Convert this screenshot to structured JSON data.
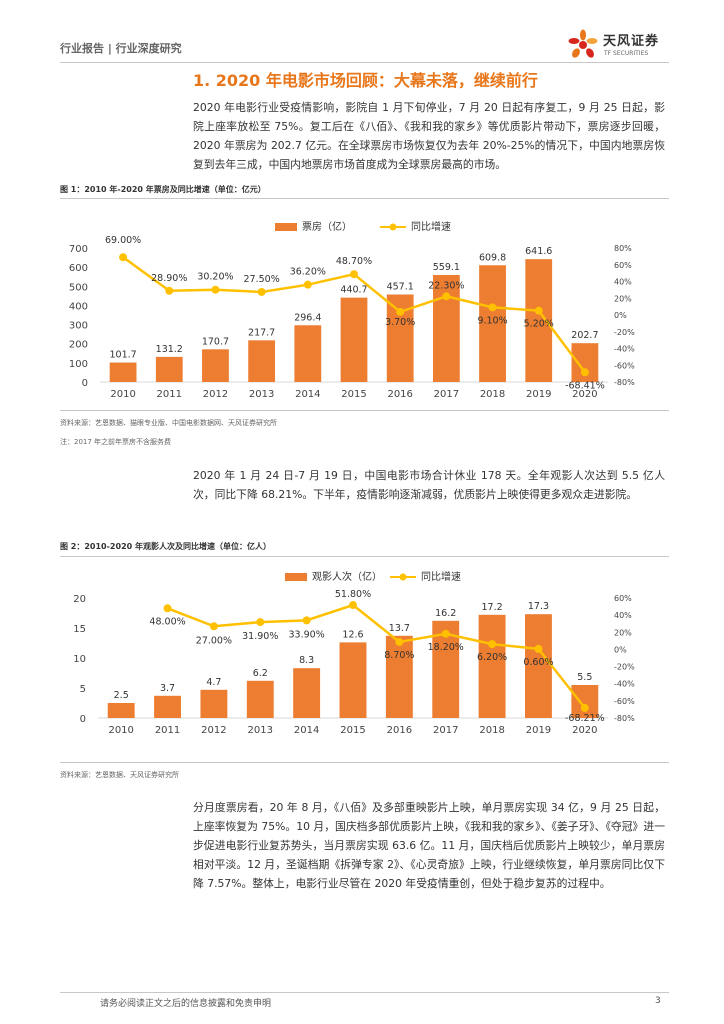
{
  "header": {
    "text": "行业报告 | 行业深度研究"
  },
  "logo": {
    "name_cn": "天风证券",
    "name_en": "TF SECURITIES"
  },
  "section_title": "1. 2020 年电影市场回顾：大幕未落，继续前行",
  "paragraphs": {
    "p1": "2020 年电影行业受疫情影响，影院自 1 月下旬停业，7 月 20 日起有序复工，9 月 25 日起，影院上座率放松至 75%。复工后在《八佰》、《我和我的家乡》等优质影片带动下，票房逐步回暖，2020 年票房为 202.7 亿元。在全球票房市场恢复仅为去年 20%-25%的情况下，中国内地票房恢复到去年三成，中国内地票房市场首度成为全球票房最高的市场。",
    "p2": "2020 年 1 月 24 日-7 月 19 日，中国电影市场合计休业 178 天。全年观影人次达到 5.5 亿人次，同比下降 68.21%。下半年，疫情影响逐渐减弱，优质影片上映使得更多观众走进影院。",
    "p3": "分月度票房看，20 年 8 月，《八佰》及多部重映影片上映，单月票房实现 34 亿，9 月 25 日起，上座率恢复为 75%。10 月，国庆档多部优质影片上映，《我和我的家乡》、《姜子牙》、《夺冠》进一步促进电影行业复苏势头，当月票房实现 63.6 亿。11 月，国庆档后优质影片上映较少，单月票房相对平淡。12 月，圣诞档期《拆弹专家 2》、《心灵奇旅》上映，行业继续恢复，单月票房同比仅下降 7.57%。整体上，电影行业尽管在 2020 年受疫情重创，但处于稳步复苏的过程中。"
  },
  "figure1": {
    "title": "图 1：2010 年-2020 年票房及同比增速（单位：亿元）",
    "source": "资料来源：艺恩数据、猫眼专业版、中国电影数据网、天风证券研究所",
    "note": "注：2017 年之前年票房不含服务费"
  },
  "figure2": {
    "title": "图 2：2010-2020 年观影人次及同比增速（单位：亿人）",
    "source": "资料来源：艺恩数据、天风证券研究所"
  },
  "footer": {
    "disclaimer": "请务必阅读正文之后的信息披露和免责申明",
    "page": "3"
  },
  "colors": {
    "bar": "#ed7d31",
    "line": "#ffc000",
    "accent": "#e8761a"
  },
  "chart_data": [
    {
      "type": "bar",
      "categories": [
        "2010",
        "2011",
        "2012",
        "2013",
        "2014",
        "2015",
        "2016",
        "2017",
        "2018",
        "2019",
        "2020"
      ],
      "series": [
        {
          "name": "票房（亿）",
          "axis": "left",
          "values": [
            101.7,
            131.2,
            170.7,
            217.7,
            296.4,
            440.7,
            457.1,
            559.1,
            609.8,
            641.6,
            202.7
          ],
          "labels": [
            "101.7",
            "131.2",
            "170.7",
            "217.7",
            "296.4",
            "440.7",
            "457.1",
            "559.1",
            "609.8",
            "641.6",
            "202.7"
          ]
        },
        {
          "name": "同比增速",
          "type": "line",
          "axis": "right",
          "values": [
            69.0,
            28.9,
            30.2,
            27.5,
            36.2,
            48.7,
            3.7,
            22.3,
            9.1,
            5.2,
            -68.41
          ],
          "labels": [
            "69.00%",
            "28.90%",
            "30.20%",
            "27.50%",
            "36.20%",
            "48.70%",
            "3.70%",
            "22.30%",
            "9.10%",
            "5.20%",
            "-68.41%"
          ]
        }
      ],
      "ylim": [
        0,
        700
      ],
      "yticks": [
        "0",
        "100",
        "200",
        "300",
        "400",
        "500",
        "600",
        "700"
      ],
      "y2lim": [
        -80,
        80
      ],
      "y2ticks": [
        "80%",
        "60%",
        "40%",
        "20%",
        "0%",
        "-20%",
        "-40%",
        "-60%",
        "-80%"
      ],
      "legend": "top-center"
    },
    {
      "type": "bar",
      "categories": [
        "2010",
        "2011",
        "2012",
        "2013",
        "2014",
        "2015",
        "2016",
        "2017",
        "2018",
        "2019",
        "2020"
      ],
      "series": [
        {
          "name": "观影人次（亿）",
          "axis": "left",
          "values": [
            2.5,
            3.7,
            4.7,
            6.2,
            8.3,
            12.6,
            13.7,
            16.2,
            17.2,
            17.3,
            5.5
          ],
          "labels": [
            "2.5",
            "3.7",
            "4.7",
            "6.2",
            "8.3",
            "12.6",
            "13.7",
            "16.2",
            "17.2",
            "17.3",
            "5.5"
          ]
        },
        {
          "name": "同比增速",
          "type": "line",
          "axis": "right",
          "values": [
            null,
            48.0,
            27.0,
            31.9,
            33.9,
            51.8,
            8.7,
            18.2,
            6.2,
            0.6,
            -68.21
          ],
          "labels": [
            "",
            "48.00%",
            "27.00%",
            "31.90%",
            "33.90%",
            "51.80%",
            "8.70%",
            "18.20%",
            "6.20%",
            "0.60%",
            "-68.21%"
          ]
        }
      ],
      "ylim": [
        0,
        20
      ],
      "yticks": [
        "0",
        "5",
        "10",
        "15",
        "20"
      ],
      "y2lim": [
        -80,
        60
      ],
      "y2ticks": [
        "60%",
        "40%",
        "20%",
        "0%",
        "-20%",
        "-40%",
        "-60%",
        "-80%"
      ],
      "legend": "top-center"
    }
  ]
}
